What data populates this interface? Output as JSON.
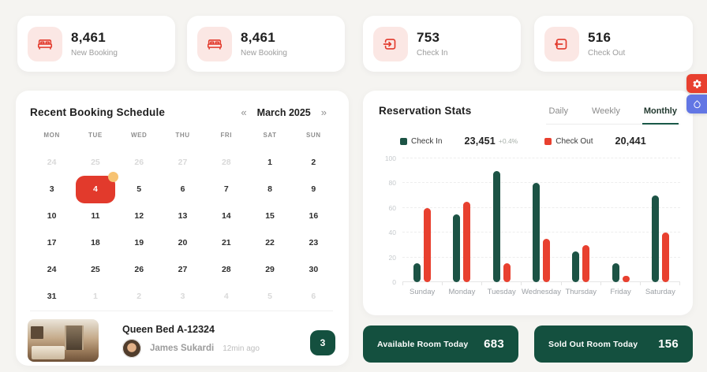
{
  "colors": {
    "accent_red": "#E23A2C",
    "icon_bg_pink": "#FBE7E4",
    "dark_green": "#14503F",
    "chart_green": "#1C5345",
    "chart_red": "#E8402F",
    "badge_yellow": "#F7C372",
    "side_blue": "#6276E4"
  },
  "stat_cards": [
    {
      "icon": "bed-icon",
      "value": "8,461",
      "label": "New Booking"
    },
    {
      "icon": "bed-icon",
      "value": "8,461",
      "label": "New Booking"
    },
    {
      "icon": "check-in-icon",
      "value": "753",
      "label": "Check In"
    },
    {
      "icon": "check-out-icon",
      "value": "516",
      "label": "Check Out"
    }
  ],
  "calendar": {
    "title": "Recent Booking Schedule",
    "nav_prev": "«",
    "nav_next": "»",
    "month": "March 2025",
    "weekdays": [
      "MON",
      "TUE",
      "WED",
      "THU",
      "FRI",
      "SAT",
      "SUN"
    ],
    "weeks": [
      [
        {
          "d": "24",
          "muted": true
        },
        {
          "d": "25",
          "muted": true
        },
        {
          "d": "26",
          "muted": true
        },
        {
          "d": "27",
          "muted": true
        },
        {
          "d": "28",
          "muted": true
        },
        {
          "d": "1"
        },
        {
          "d": "2"
        }
      ],
      [
        {
          "d": "3"
        },
        {
          "d": "4",
          "selected": true,
          "dot": true
        },
        {
          "d": "5"
        },
        {
          "d": "6"
        },
        {
          "d": "7"
        },
        {
          "d": "8"
        },
        {
          "d": "9"
        }
      ],
      [
        {
          "d": "10"
        },
        {
          "d": "11"
        },
        {
          "d": "12"
        },
        {
          "d": "13"
        },
        {
          "d": "14"
        },
        {
          "d": "15"
        },
        {
          "d": "16"
        }
      ],
      [
        {
          "d": "17"
        },
        {
          "d": "18"
        },
        {
          "d": "19"
        },
        {
          "d": "20"
        },
        {
          "d": "21"
        },
        {
          "d": "22"
        },
        {
          "d": "23"
        }
      ],
      [
        {
          "d": "24"
        },
        {
          "d": "25"
        },
        {
          "d": "26"
        },
        {
          "d": "27"
        },
        {
          "d": "28"
        },
        {
          "d": "29"
        },
        {
          "d": "30"
        }
      ],
      [
        {
          "d": "31"
        },
        {
          "d": "1",
          "muted": true
        },
        {
          "d": "2",
          "muted": true
        },
        {
          "d": "3",
          "muted": true
        },
        {
          "d": "4",
          "muted": true
        },
        {
          "d": "5",
          "muted": true
        },
        {
          "d": "6",
          "muted": true
        }
      ]
    ]
  },
  "booking": {
    "room": "Queen Bed A-12324",
    "guest": "James Sukardi",
    "time": "12min ago",
    "badge": "3"
  },
  "reservation": {
    "title": "Reservation Stats",
    "tabs": [
      {
        "label": "Daily",
        "active": false
      },
      {
        "label": "Weekly",
        "active": false
      },
      {
        "label": "Monthly",
        "active": true
      }
    ],
    "legend": [
      {
        "label": "Check In",
        "value": "23,451",
        "delta": "+0.4%",
        "color": "#1C5345"
      },
      {
        "label": "Check Out",
        "value": "20,441",
        "delta": "",
        "color": "#E8402F"
      }
    ]
  },
  "chart_data": {
    "type": "bar",
    "categories": [
      "Sunday",
      "Monday",
      "Tuesday",
      "Wednesday",
      "Thursday",
      "Friday",
      "Saturday"
    ],
    "series": [
      {
        "name": "Check In",
        "color": "#1C5345",
        "values": [
          15,
          55,
          90,
          80,
          25,
          15,
          70
        ]
      },
      {
        "name": "Check Out",
        "color": "#E8402F",
        "values": [
          60,
          65,
          15,
          35,
          30,
          5,
          40
        ]
      }
    ],
    "title": "Reservation Stats",
    "xlabel": "",
    "ylabel": "",
    "ylim": [
      0,
      100
    ],
    "yticks": [
      0,
      20,
      40,
      60,
      80,
      100
    ],
    "grid": true,
    "legend_position": "top"
  },
  "summary_cards": [
    {
      "label": "Available Room Today",
      "value": "683"
    },
    {
      "label": "Sold Out Room Today",
      "value": "156"
    }
  ],
  "side_buttons": [
    {
      "name": "settings",
      "icon": "gear-icon",
      "color": "#E8402F"
    },
    {
      "name": "theme",
      "icon": "droplet-icon",
      "color": "#6276E4"
    }
  ]
}
